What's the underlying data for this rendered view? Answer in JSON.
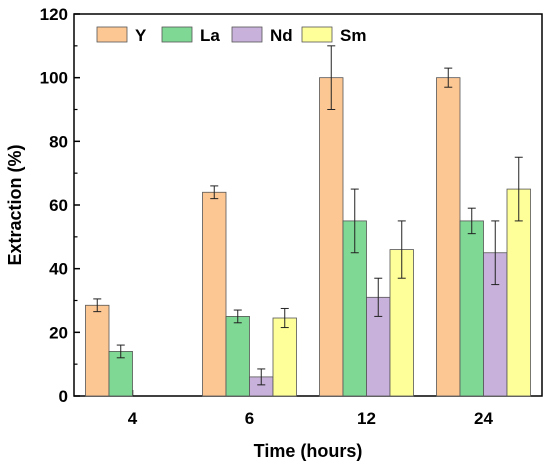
{
  "chart_data": {
    "type": "bar",
    "xlabel": "Time (hours)",
    "ylabel": "Extraction (%)",
    "ylim": [
      0,
      120
    ],
    "yticks": [
      0,
      20,
      40,
      60,
      80,
      100,
      120
    ],
    "categories": [
      "4",
      "6",
      "12",
      "24"
    ],
    "grid": false,
    "legend_position": "top-left",
    "legend_orientation": "horizontal",
    "series": [
      {
        "name": "Y",
        "color": "#FDC794",
        "values": [
          28.5,
          64,
          100,
          100
        ],
        "errors": [
          2,
          2,
          10,
          3
        ]
      },
      {
        "name": "La",
        "color": "#7FD894",
        "values": [
          14,
          25,
          55,
          55
        ],
        "errors": [
          2,
          2,
          10,
          4
        ]
      },
      {
        "name": "Nd",
        "color": "#C8B1DA",
        "values": [
          null,
          6,
          31,
          45
        ],
        "errors": [
          null,
          2.5,
          6,
          10
        ]
      },
      {
        "name": "Sm",
        "color": "#FFFF99",
        "values": [
          null,
          24.5,
          46,
          65
        ],
        "errors": [
          null,
          3,
          9,
          10
        ]
      }
    ]
  }
}
